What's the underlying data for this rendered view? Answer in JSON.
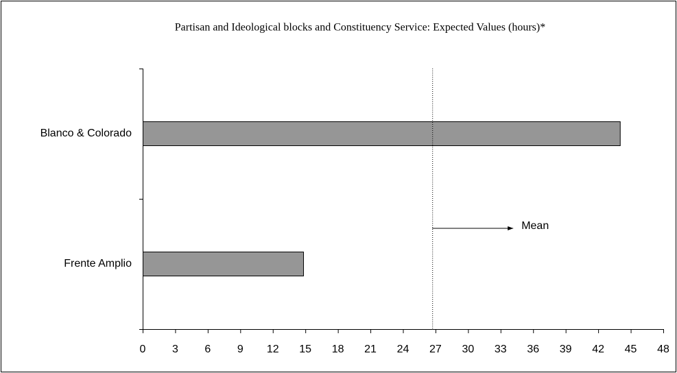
{
  "chart_data": {
    "type": "hbar",
    "title": "Partisan and Ideological blocks and Constituency Service: Expected Values (hours)*",
    "categories": [
      "Blanco & Colorado",
      "Frente Amplio"
    ],
    "values": [
      44.0,
      14.8
    ],
    "color": "#969696",
    "xlim": [
      0,
      48
    ],
    "xticks": [
      0,
      3,
      6,
      9,
      12,
      15,
      18,
      21,
      24,
      27,
      30,
      33,
      36,
      39,
      42,
      45,
      48
    ],
    "mean": 26.7,
    "mean_label": "Mean"
  }
}
